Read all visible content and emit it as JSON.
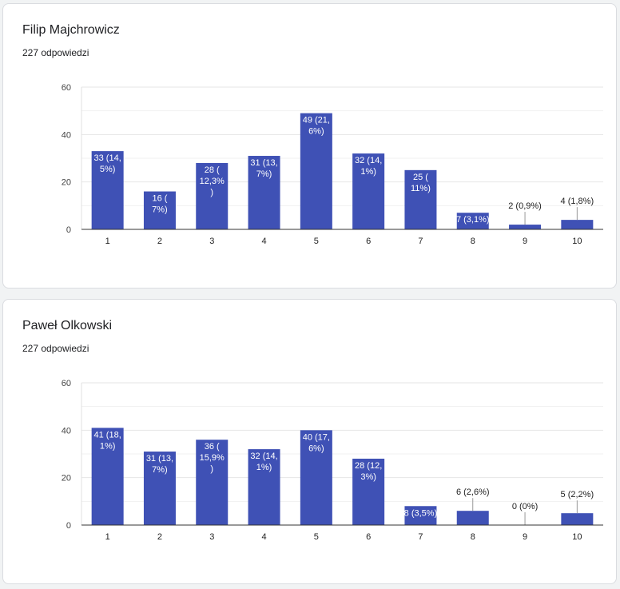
{
  "accent_color": "#3f51b5",
  "cards": [
    {
      "title": "Filip Majchrowicz",
      "subtitle": "227 odpowiedzi"
    },
    {
      "title": "Paweł Olkowski",
      "subtitle": "227 odpowiedzi"
    }
  ],
  "chart_data": [
    {
      "type": "bar",
      "title": "Filip Majchrowicz",
      "categories": [
        "1",
        "2",
        "3",
        "4",
        "5",
        "6",
        "7",
        "8",
        "9",
        "10"
      ],
      "values": [
        33,
        16,
        28,
        31,
        49,
        32,
        25,
        7,
        2,
        4
      ],
      "labels": [
        [
          "33 (14,",
          "5%)"
        ],
        [
          "16 (",
          "7%)"
        ],
        [
          "28 (",
          "12,3%",
          ")"
        ],
        [
          "31 (13,",
          "7%)"
        ],
        [
          "49 (21,",
          "6%)"
        ],
        [
          "32 (14,",
          "1%)"
        ],
        [
          "25 (",
          "11%)"
        ],
        [
          "7 (3,1%)"
        ],
        [
          "2 (0,9%)"
        ],
        [
          "4 (1,8%)"
        ]
      ],
      "yticks": [
        "0",
        "20",
        "40",
        "60"
      ],
      "ylim": [
        0,
        60
      ],
      "grid": true,
      "legend": "none"
    },
    {
      "type": "bar",
      "title": "Paweł Olkowski",
      "categories": [
        "1",
        "2",
        "3",
        "4",
        "5",
        "6",
        "7",
        "8",
        "9",
        "10"
      ],
      "values": [
        41,
        31,
        36,
        32,
        40,
        28,
        8,
        6,
        0,
        5
      ],
      "labels": [
        [
          "41 (18,",
          "1%)"
        ],
        [
          "31 (13,",
          "7%)"
        ],
        [
          "36 (",
          "15,9%",
          ")"
        ],
        [
          "32 (14,",
          "1%)"
        ],
        [
          "40 (17,",
          "6%)"
        ],
        [
          "28 (12,",
          "3%)"
        ],
        [
          "8 (3,5%)"
        ],
        [
          "6 (2,6%)"
        ],
        [
          "0 (0%)"
        ],
        [
          "5 (2,2%)"
        ]
      ],
      "yticks": [
        "0",
        "20",
        "40",
        "60"
      ],
      "ylim": [
        0,
        60
      ],
      "grid": true,
      "legend": "none"
    }
  ]
}
